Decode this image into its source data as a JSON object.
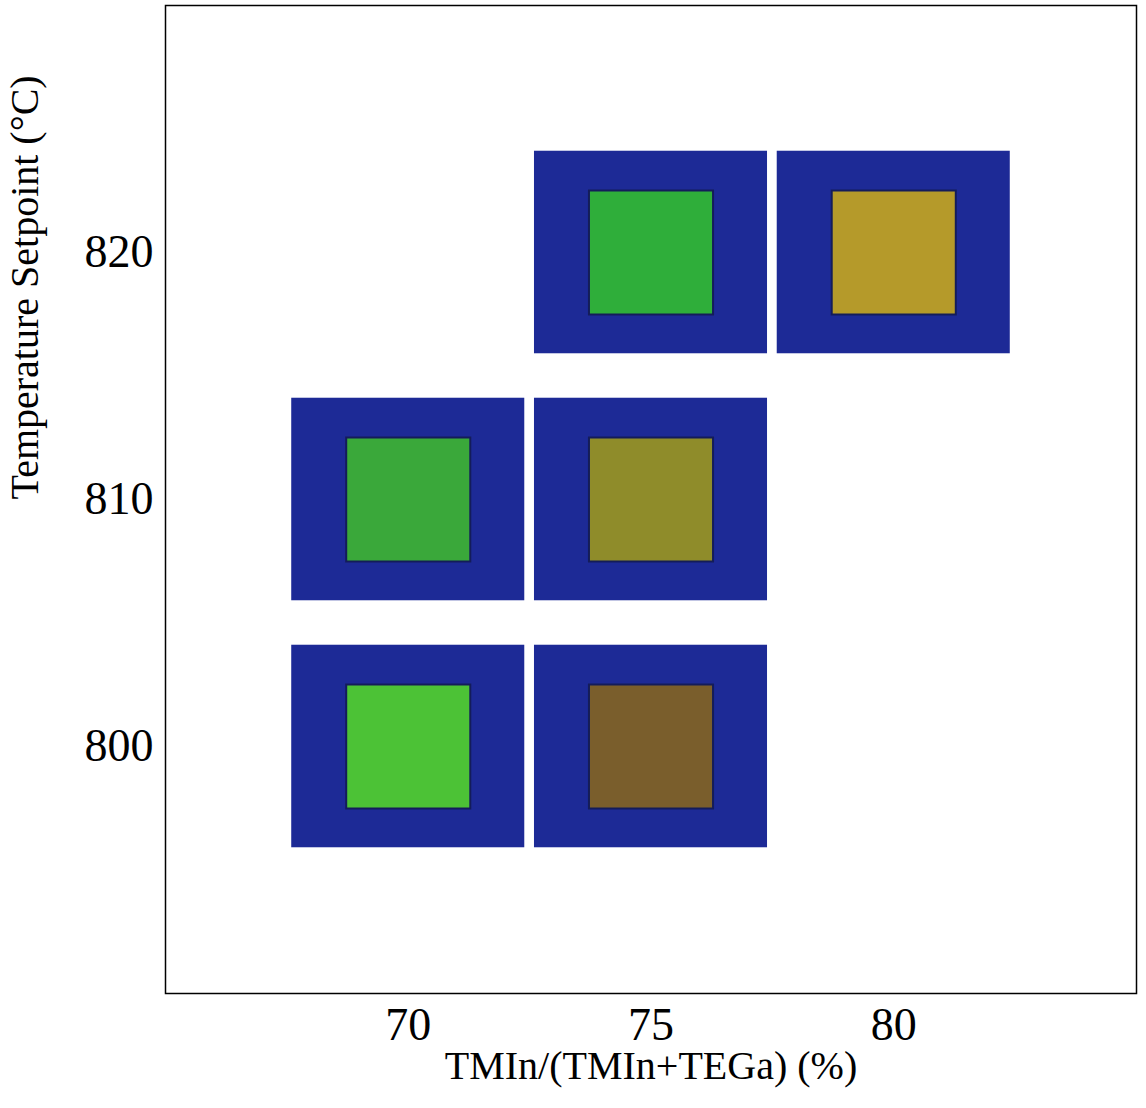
{
  "chart_data": {
    "type": "scatter",
    "x_label": "TMIn/(TMIn+TEGa) (%)",
    "y_label": "Temperature Setpoint (°C)",
    "x": [
      75,
      80,
      70,
      75,
      70,
      75
    ],
    "values": [
      820,
      820,
      810,
      810,
      800,
      800
    ],
    "colors": [
      "#2fae3a",
      "#b59a2a",
      "#3aa83a",
      "#8f8c2a",
      "#4cc236",
      "#7a5e2c"
    ],
    "marker": "square",
    "xlim": [
      65,
      85
    ],
    "ylim": [
      790,
      830
    ],
    "xticks": [
      70,
      75,
      80
    ],
    "yticks": [
      800,
      810,
      820
    ]
  }
}
